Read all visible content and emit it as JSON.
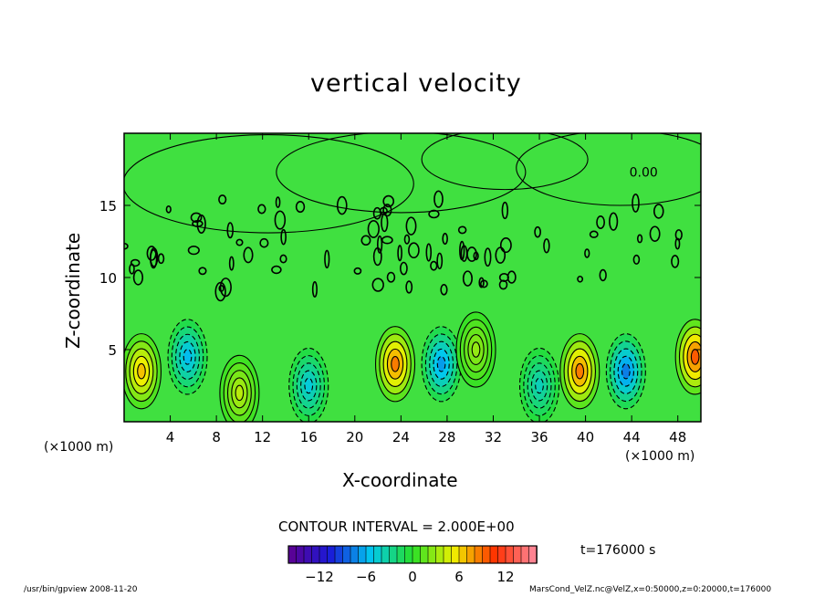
{
  "chart_data": {
    "type": "heatmap",
    "title": "vertical velocity",
    "xlabel": "X-coordinate",
    "ylabel": "Z-coordinate",
    "x_unit_left": "(×1000 m)",
    "x_unit_right": "(×1000 m)",
    "xlim": [
      0,
      50
    ],
    "ylim": [
      0,
      20
    ],
    "x_ticks": [
      4,
      8,
      12,
      16,
      20,
      24,
      28,
      32,
      36,
      40,
      44,
      48
    ],
    "y_ticks": [
      5,
      10,
      15
    ],
    "contour_interval_text": "CONTOUR INTERVAL = 2.000E+00",
    "contour_level_label": "0.00",
    "colorbar": {
      "ticks": [
        -12,
        -6,
        0,
        6,
        12
      ],
      "range": [
        -16,
        16
      ],
      "colors": [
        "#5e0090",
        "#1a1ad8",
        "#00c8f0",
        "#28e028",
        "#f0f000",
        "#ff3000",
        "#ff8ca0"
      ]
    },
    "time_label": "t=176000 s",
    "cells": [
      {
        "x": 1.5,
        "z": 3.5,
        "w": 7.0
      },
      {
        "x": 5.5,
        "z": 4.5,
        "w": -6.0
      },
      {
        "x": 10.0,
        "z": 2.0,
        "w": 4.0
      },
      {
        "x": 16.0,
        "z": 2.5,
        "w": -5.0
      },
      {
        "x": 23.5,
        "z": 4.0,
        "w": 9.0
      },
      {
        "x": 27.5,
        "z": 4.0,
        "w": -7.0
      },
      {
        "x": 30.5,
        "z": 5.0,
        "w": 3.0
      },
      {
        "x": 36.0,
        "z": 2.5,
        "w": -4.0
      },
      {
        "x": 39.5,
        "z": 3.5,
        "w": 9.0
      },
      {
        "x": 43.5,
        "z": 3.5,
        "w": -8.0
      },
      {
        "x": 49.5,
        "z": 4.5,
        "w": 10.0
      }
    ]
  },
  "footer": {
    "left": "/usr/bin/gpview  2008-11-20",
    "right": "MarsCond_VelZ.nc@VelZ,x=0:50000,z=0:20000,t=176000"
  }
}
